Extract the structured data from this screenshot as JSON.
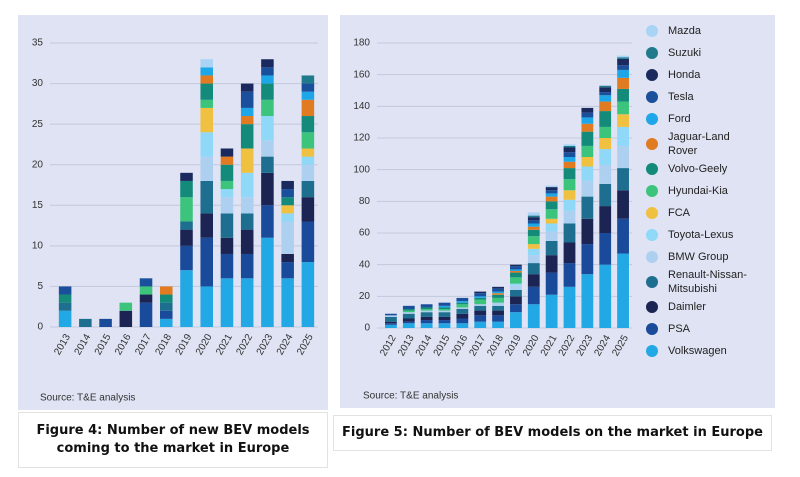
{
  "chart_data": [
    {
      "type": "bar",
      "stacked": true,
      "caption": "Figure 4: Number of new BEV models coming to the market in Europe",
      "source": "Source: T&E analysis",
      "categories": [
        "2013",
        "2014",
        "2015",
        "2016",
        "2017",
        "2018",
        "2019",
        "2020",
        "2021",
        "2022",
        "2023",
        "2024",
        "2025"
      ],
      "ylim": [
        0,
        35
      ],
      "yticks": [
        0,
        5,
        10,
        15,
        20,
        25,
        30,
        35
      ],
      "grid": true,
      "series": [
        {
          "color": "#23a8e6",
          "values": [
            2,
            0,
            0,
            0,
            0,
            1,
            7,
            5,
            6,
            6,
            11,
            6,
            8
          ]
        },
        {
          "color": "#1a4a9a",
          "values": [
            0,
            0,
            1,
            0,
            3,
            1,
            3,
            6,
            3,
            3,
            4,
            2,
            5
          ]
        },
        {
          "color": "#1b2452",
          "values": [
            0,
            0,
            0,
            2,
            1,
            0,
            2,
            3,
            2,
            3,
            4,
            1,
            3
          ]
        },
        {
          "color": "#1e6f8f",
          "values": [
            1,
            1,
            0,
            0,
            0,
            1,
            1,
            4,
            3,
            2,
            2,
            0,
            2
          ]
        },
        {
          "color": "#aed0f0",
          "values": [
            0,
            0,
            0,
            0,
            0,
            0,
            0,
            3,
            2,
            2,
            2,
            4,
            2
          ]
        },
        {
          "color": "#8fd8f8",
          "values": [
            0,
            0,
            0,
            0,
            0,
            0,
            0,
            3,
            1,
            3,
            3,
            1,
            1
          ]
        },
        {
          "color": "#f0c040",
          "values": [
            0,
            0,
            0,
            0,
            0,
            0,
            0,
            3,
            0,
            3,
            0,
            1,
            1
          ]
        },
        {
          "color": "#3cc47c",
          "values": [
            0,
            0,
            0,
            1,
            1,
            0,
            3,
            1,
            1,
            0,
            2,
            0,
            2
          ]
        },
        {
          "color": "#138a7a",
          "values": [
            1,
            0,
            0,
            0,
            0,
            1,
            2,
            2,
            2,
            3,
            2,
            1,
            2
          ]
        },
        {
          "color": "#e07b22",
          "values": [
            0,
            0,
            0,
            0,
            0,
            1,
            0,
            1,
            1,
            1,
            0,
            0,
            2
          ]
        },
        {
          "color": "#1ea7e8",
          "values": [
            0,
            0,
            0,
            0,
            0,
            0,
            0,
            1,
            0,
            1,
            1,
            0,
            1
          ]
        },
        {
          "color": "#1a4f9c",
          "values": [
            1,
            0,
            0,
            0,
            1,
            0,
            0,
            0,
            0,
            2,
            1,
            1,
            1
          ]
        },
        {
          "color": "#1b2a5e",
          "values": [
            0,
            0,
            0,
            0,
            0,
            0,
            1,
            0,
            1,
            1,
            1,
            1,
            0
          ]
        },
        {
          "color": "#1f7a8c",
          "values": [
            0,
            0,
            0,
            0,
            0,
            0,
            0,
            0,
            0,
            0,
            0,
            0,
            1
          ]
        },
        {
          "color": "#a9d4f5",
          "values": [
            0,
            0,
            0,
            0,
            0,
            0,
            0,
            1,
            0,
            0,
            0,
            0,
            0
          ]
        }
      ]
    },
    {
      "type": "bar",
      "stacked": true,
      "caption": "Figure 5: Number of BEV models on the market in Europe",
      "source": "Source: T&E analysis",
      "categories": [
        "2012",
        "2013",
        "2014",
        "2015",
        "2016",
        "2017",
        "2018",
        "2019",
        "2020",
        "2021",
        "2022",
        "2023",
        "2024",
        "2025"
      ],
      "ylim": [
        0,
        180
      ],
      "yticks": [
        0,
        20,
        40,
        60,
        80,
        100,
        120,
        140,
        160,
        180
      ],
      "grid": true,
      "legend": "right",
      "series": [
        {
          "name": "Volkswagen",
          "color": "#23a8e6",
          "values": [
            2,
            3,
            3,
            3,
            3,
            4,
            4,
            10,
            15,
            21,
            26,
            34,
            40,
            47
          ]
        },
        {
          "name": "PSA",
          "color": "#1a4a9a",
          "values": [
            1,
            1,
            2,
            2,
            3,
            4,
            4,
            5,
            11,
            14,
            15,
            19,
            20,
            22
          ]
        },
        {
          "name": "Daimler",
          "color": "#1b2452",
          "values": [
            1,
            2,
            2,
            2,
            3,
            3,
            3,
            5,
            8,
            11,
            13,
            16,
            17,
            18
          ]
        },
        {
          "name": "Renault-Nissan-Mitsubishi",
          "color": "#1e6f8f",
          "values": [
            3,
            3,
            3,
            3,
            3,
            3,
            3,
            4,
            7,
            9,
            12,
            14,
            14,
            14
          ]
        },
        {
          "name": "BMW Group",
          "color": "#aed0f0",
          "values": [
            1,
            1,
            1,
            1,
            1,
            1,
            2,
            3,
            5,
            6,
            8,
            10,
            12,
            14
          ]
        },
        {
          "name": "Toyota-Lexus",
          "color": "#8fd8f8",
          "values": [
            0,
            0,
            0,
            0,
            0,
            0,
            0,
            1,
            4,
            5,
            7,
            9,
            10,
            12
          ]
        },
        {
          "name": "FCA",
          "color": "#f0c040",
          "values": [
            0,
            0,
            0,
            0,
            0,
            0,
            0,
            0,
            3,
            3,
            6,
            6,
            7,
            8
          ]
        },
        {
          "name": "Hyundai-Kia",
          "color": "#3cc47c",
          "values": [
            0,
            1,
            1,
            1,
            2,
            3,
            3,
            4,
            5,
            6,
            7,
            7,
            7,
            8
          ]
        },
        {
          "name": "Volvo-Geely",
          "color": "#138a7a",
          "values": [
            0,
            1,
            1,
            1,
            1,
            1,
            2,
            3,
            4,
            5,
            7,
            9,
            10,
            8
          ]
        },
        {
          "name": "Jaguar-Land Rover",
          "color": "#e07b22",
          "values": [
            0,
            0,
            0,
            0,
            0,
            0,
            1,
            1,
            2,
            3,
            4,
            5,
            6,
            7
          ]
        },
        {
          "name": "Ford",
          "color": "#1ea7e8",
          "values": [
            0,
            0,
            0,
            1,
            1,
            1,
            1,
            1,
            2,
            2,
            3,
            4,
            4,
            5
          ]
        },
        {
          "name": "Tesla",
          "color": "#1a4f9c",
          "values": [
            1,
            2,
            2,
            2,
            2,
            2,
            2,
            2,
            2,
            2,
            3,
            3,
            2,
            3
          ]
        },
        {
          "name": "Honda",
          "color": "#1b2a5e",
          "values": [
            0,
            0,
            0,
            0,
            0,
            1,
            1,
            1,
            2,
            2,
            3,
            3,
            3,
            4
          ]
        },
        {
          "name": "Suzuki",
          "color": "#1f7a8c",
          "values": [
            0,
            0,
            0,
            0,
            0,
            0,
            0,
            0,
            1,
            0,
            1,
            0,
            1,
            1
          ]
        },
        {
          "name": "Mazda",
          "color": "#a9d4f5",
          "values": [
            0,
            0,
            0,
            0,
            0,
            0,
            0,
            0,
            2,
            1,
            1,
            0,
            0,
            1
          ]
        }
      ]
    }
  ]
}
